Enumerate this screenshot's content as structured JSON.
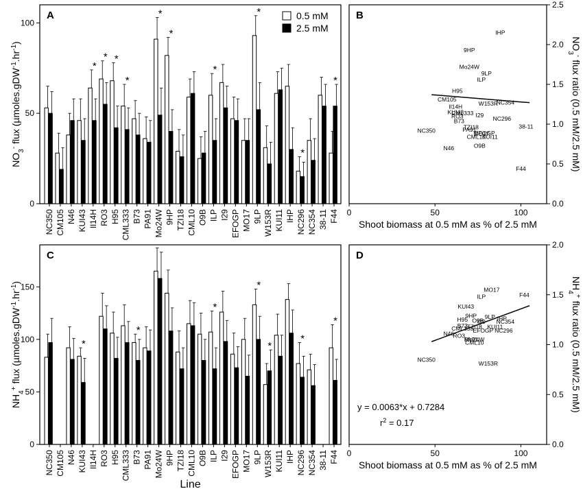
{
  "chart_data": [
    {
      "panel": "A",
      "type": "bar",
      "title": "",
      "xlabel": "",
      "ylabel": "NO3- flux (µmoles.gDW-1.hr-1)",
      "ylabel_parts": [
        "NO",
        "3",
        "-",
        " flux (",
        "µ",
        "moles.gDW",
        "-1",
        ".hr",
        "-1",
        ")"
      ],
      "ylim": [
        0,
        110
      ],
      "yticks": [
        "0",
        "50",
        "100"
      ],
      "categories": [
        "NC350",
        "CM105",
        "N46",
        "KUI43",
        "Il14H",
        "RO3",
        "H95",
        "CML333",
        "B73",
        "PA91",
        "Mo24W",
        "9HP",
        "TZI18",
        "CML10",
        "O9B",
        "ILP",
        "I29",
        "EFOGP",
        "MO17",
        "9LP",
        "W153R",
        "KUI11",
        "IHP",
        "NC296",
        "NC354",
        "38-11",
        "F44"
      ],
      "series": [
        {
          "name": "0.5 mM",
          "color": "#ffffff",
          "values": [
            53,
            28,
            38,
            46,
            64,
            69,
            68,
            54,
            47,
            36,
            91,
            82,
            29,
            59,
            25,
            60,
            67,
            47,
            35,
            93,
            31,
            61,
            65,
            18,
            35,
            60,
            28
          ],
          "errors": [
            12,
            11,
            12,
            12,
            10,
            10,
            10,
            12,
            10,
            12,
            12,
            10,
            12,
            10,
            12,
            12,
            10,
            12,
            12,
            11,
            12,
            12,
            12,
            8,
            12,
            10,
            12
          ]
        },
        {
          "name": "2.5 mM",
          "color": "#000000",
          "values": [
            50,
            19,
            46,
            35,
            46,
            55,
            42,
            41,
            38,
            34,
            49,
            40,
            26,
            61,
            28,
            35,
            53,
            46,
            35,
            52,
            22,
            63,
            30,
            15,
            24,
            54,
            54
          ],
          "errors": [
            12,
            12,
            12,
            12,
            12,
            12,
            12,
            12,
            12,
            12,
            15,
            12,
            12,
            12,
            12,
            12,
            12,
            12,
            12,
            15,
            12,
            12,
            12,
            8,
            12,
            12,
            12
          ]
        }
      ],
      "significant": [
        "Il14H",
        "RO3",
        "H95",
        "CML333",
        "Mo24W",
        "9HP",
        "ILP",
        "9LP",
        "NC296",
        "F44"
      ],
      "legend": {
        "position": "top-right",
        "entries": [
          "0.5 mM",
          "2.5 mM"
        ]
      }
    },
    {
      "panel": "B",
      "type": "scatter",
      "xlabel": "Shoot biomass at 0.5 mM as % of 2.5 mM",
      "ylabel": "NO3- flux ratio (0.5 mM/2.5 mM)",
      "ylabel_parts": [
        "NO",
        "3",
        "-",
        " flux ratio (0.5 mM/2.5 mM)"
      ],
      "xlim": [
        0,
        115
      ],
      "ylim": [
        0,
        2.5
      ],
      "xticks": [
        "0",
        "50",
        "100"
      ],
      "yticks": [
        "0.0",
        "0.5",
        "1.0",
        "1.5",
        "2.0",
        "2.5"
      ],
      "points": [
        {
          "label": "IHP",
          "x": 88,
          "y": 2.15
        },
        {
          "label": "9HP",
          "x": 70,
          "y": 1.93
        },
        {
          "label": "Mo24W",
          "x": 70,
          "y": 1.72
        },
        {
          "label": "9LP",
          "x": 80,
          "y": 1.64
        },
        {
          "label": "ILP",
          "x": 77,
          "y": 1.56
        },
        {
          "label": "H95",
          "x": 63,
          "y": 1.42
        },
        {
          "label": "CM105",
          "x": 57,
          "y": 1.31
        },
        {
          "label": "NC354",
          "x": 91,
          "y": 1.27
        },
        {
          "label": "W153R",
          "x": 81,
          "y": 1.26
        },
        {
          "label": "Il14H",
          "x": 62,
          "y": 1.22
        },
        {
          "label": "KUI43",
          "x": 62,
          "y": 1.15
        },
        {
          "label": "CML333",
          "x": 66,
          "y": 1.14
        },
        {
          "label": "I29",
          "x": 76,
          "y": 1.11
        },
        {
          "label": "RO3",
          "x": 63,
          "y": 1.1
        },
        {
          "label": "NC296",
          "x": 89,
          "y": 1.07
        },
        {
          "label": "B73",
          "x": 64,
          "y": 1.04
        },
        {
          "label": "38-11",
          "x": 103,
          "y": 0.97
        },
        {
          "label": "TZI18",
          "x": 71,
          "y": 0.96
        },
        {
          "label": "PA91",
          "x": 70,
          "y": 0.93
        },
        {
          "label": "NC350",
          "x": 45,
          "y": 0.92
        },
        {
          "label": "EFOGP",
          "x": 79,
          "y": 0.89
        },
        {
          "label": "MO17",
          "x": 77,
          "y": 0.88
        },
        {
          "label": "CML10",
          "x": 74,
          "y": 0.84
        },
        {
          "label": "KUI11",
          "x": 82,
          "y": 0.84
        },
        {
          "label": "O9B",
          "x": 76,
          "y": 0.73
        },
        {
          "label": "N46",
          "x": 58,
          "y": 0.7
        },
        {
          "label": "F44",
          "x": 100,
          "y": 0.44
        }
      ],
      "trendline": {
        "x": [
          48,
          105
        ],
        "y": [
          1.37,
          1.27
        ]
      }
    },
    {
      "panel": "C",
      "type": "bar",
      "xlabel": "Line",
      "ylabel": "NH4+ flux (µmoles.gDW-1.hr-1)",
      "ylabel_parts": [
        "NH",
        "4",
        "+",
        " flux (",
        "µ",
        "moles.gDW",
        "-1",
        ".hr",
        "-1",
        ")"
      ],
      "ylim": [
        0,
        190
      ],
      "yticks": [
        "0",
        "50",
        "100",
        "150"
      ],
      "categories": [
        "NC350",
        "CM105",
        "N46",
        "KUI43",
        "Il14H",
        "RO3",
        "H95",
        "CML333",
        "B73",
        "PA91",
        "Mo24W",
        "9HP",
        "TZI18",
        "CML10",
        "O9B",
        "ILP",
        "I29",
        "EFOGP",
        "MO17",
        "9LP",
        "W153R",
        "KUI11",
        "IHP",
        "NC296",
        "NC354",
        "38-11",
        "F44"
      ],
      "series": [
        {
          "name": "0.5 mM",
          "color": "#ffffff",
          "values": [
            83,
            0,
            92,
            84,
            0,
            122,
            106,
            113,
            97,
            92,
            165,
            144,
            88,
            115,
            105,
            107,
            126,
            86,
            100,
            133,
            57,
            104,
            138,
            77,
            71,
            0,
            92
          ],
          "errors": [
            22,
            0,
            20,
            8,
            0,
            22,
            20,
            20,
            8,
            20,
            22,
            22,
            20,
            22,
            20,
            20,
            20,
            20,
            20,
            15,
            20,
            20,
            15,
            20,
            15,
            0,
            22
          ]
        },
        {
          "name": "2.5 mM",
          "color": "#000000",
          "values": [
            97,
            0,
            81,
            59,
            0,
            110,
            82,
            97,
            80,
            89,
            158,
            108,
            72,
            113,
            80,
            72,
            98,
            73,
            65,
            100,
            70,
            84,
            106,
            64,
            56,
            0,
            61
          ],
          "errors": [
            23,
            0,
            20,
            23,
            0,
            22,
            20,
            20,
            20,
            20,
            25,
            22,
            20,
            22,
            20,
            20,
            20,
            20,
            20,
            22,
            20,
            20,
            22,
            20,
            20,
            0,
            20
          ]
        }
      ],
      "significant": [
        "KUI43",
        "B73",
        "ILP",
        "9LP",
        "W153R",
        "NC296",
        "F44"
      ]
    },
    {
      "panel": "D",
      "type": "scatter",
      "xlabel": "Shoot biomass at 0.5 mM as % of 2.5 mM",
      "ylabel": "NH4+ flux ratio (0.5 mM/2.5 mM)",
      "ylabel_parts": [
        "NH",
        "4",
        "+",
        " flux ratio (0.5 mM/2.5 mM)"
      ],
      "xlim": [
        0,
        115
      ],
      "ylim": [
        0,
        2.0
      ],
      "xticks": [
        "0",
        "50",
        "100"
      ],
      "yticks": [
        "0.0",
        "0.5",
        "1.0",
        "1.5",
        "2.0"
      ],
      "points": [
        {
          "label": "MO17",
          "x": 83,
          "y": 1.55
        },
        {
          "label": "F44",
          "x": 102,
          "y": 1.5
        },
        {
          "label": "ILP",
          "x": 77,
          "y": 1.48
        },
        {
          "label": "KUI43",
          "x": 68,
          "y": 1.38
        },
        {
          "label": "9HP",
          "x": 71,
          "y": 1.29
        },
        {
          "label": "9LP",
          "x": 82,
          "y": 1.28
        },
        {
          "label": "IHP",
          "x": 89,
          "y": 1.26
        },
        {
          "label": "H95",
          "x": 66,
          "y": 1.25
        },
        {
          "label": "O9B",
          "x": 75,
          "y": 1.24
        },
        {
          "label": "I29",
          "x": 77,
          "y": 1.23
        },
        {
          "label": "NC354",
          "x": 91,
          "y": 1.23
        },
        {
          "label": "B73",
          "x": 66,
          "y": 1.19
        },
        {
          "label": "TZI18",
          "x": 73,
          "y": 1.18
        },
        {
          "label": "KUI11",
          "x": 85,
          "y": 1.18
        },
        {
          "label": "CML333",
          "x": 66,
          "y": 1.16
        },
        {
          "label": "EFOGP",
          "x": 78,
          "y": 1.14
        },
        {
          "label": "NC296",
          "x": 90,
          "y": 1.14
        },
        {
          "label": "N46",
          "x": 58,
          "y": 1.11
        },
        {
          "label": "RO3",
          "x": 64,
          "y": 1.09
        },
        {
          "label": "PA91",
          "x": 71,
          "y": 1.05
        },
        {
          "label": "Mo24W",
          "x": 73,
          "y": 1.05
        },
        {
          "label": "CML10",
          "x": 73,
          "y": 1.02
        },
        {
          "label": "NC350",
          "x": 45,
          "y": 0.85
        },
        {
          "label": "W153R",
          "x": 81,
          "y": 0.81
        }
      ],
      "trendline": {
        "x": [
          48,
          105
        ],
        "y": [
          1.03,
          1.39
        ]
      },
      "equation": "y = 0.0063*x + 0.7284",
      "r2_prefix": "r",
      "r2_exp": "2",
      "r2_suffix": " = 0.17"
    }
  ]
}
